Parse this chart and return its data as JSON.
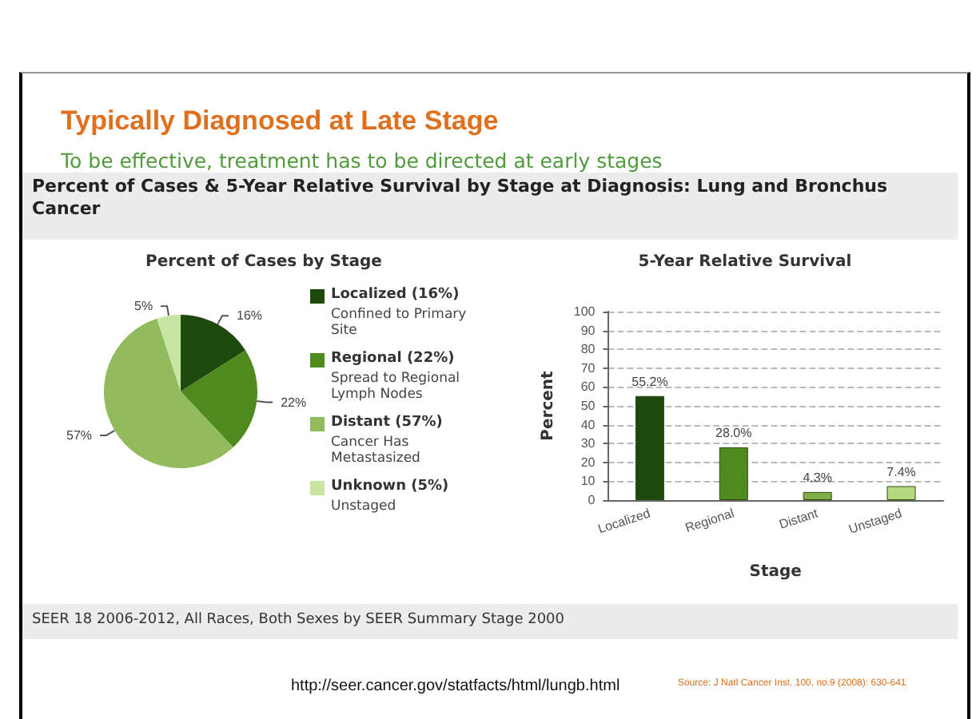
{
  "chart_data": [
    {
      "type": "other",
      "title": "Typically Diagnosed at Late Stage",
      "subtitle": "To be effective, treatment has to be directed at early stages",
      "annotations": [
        "Percent of Cases & 5-Year Relative Survival by Stage at Diagnosis: Lung and Bronchus Cancer",
        "SEER 18 2006-2012, All Races, Both Sexes by SEER Summary Stage 2000",
        "http://seer.cancer.gov/statfacts/html/lungb.html",
        "Source: J Natl Cancer Inst. 100, no.9 (2008): 630-641"
      ]
    },
    {
      "type": "pie",
      "title": "Percent of Cases by Stage",
      "categories": [
        "Localized (16%)",
        "Regional (22%)",
        "Distant (57%)",
        "Unknown (5%)"
      ],
      "values": [
        16,
        22,
        57,
        5
      ],
      "colors": [
        "#1f4a0e",
        "#4f8a1f",
        "#92bb5e",
        "#c9e5a3"
      ],
      "value_labels": [
        "16%",
        "22%",
        "57%",
        "5%"
      ],
      "annotations": [
        "Confined to Primary Site",
        "Spread to Regional Lymph Nodes",
        "Cancer Has Metastasized",
        "Unstaged"
      ],
      "legend": "right"
    },
    {
      "type": "bar",
      "title": "5-Year Relative Survival",
      "xlabel": "Stage",
      "ylabel": "Percent",
      "categories": [
        "Localized",
        "Regional",
        "Distant",
        "Unstaged"
      ],
      "values": [
        55.2,
        28.0,
        4.3,
        7.4
      ],
      "colors": [
        "#1f4a0e",
        "#4f8a1f",
        "#7fae45",
        "#b5da80"
      ],
      "value_labels": [
        "55.2%",
        "28.0%",
        "4.3%",
        "7.4%"
      ],
      "ylim": [
        0,
        100
      ],
      "yticks": [
        0,
        10,
        20,
        30,
        40,
        50,
        60,
        70,
        80,
        90,
        100
      ],
      "grid": "y"
    }
  ]
}
